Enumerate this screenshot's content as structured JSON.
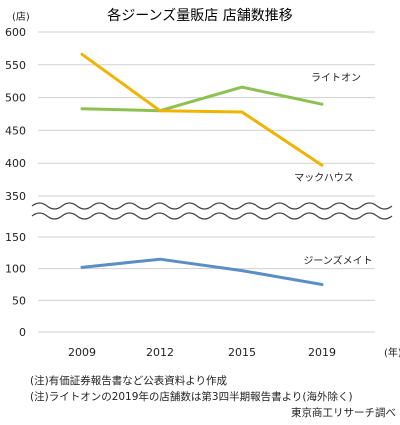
{
  "chart_data": {
    "type": "line",
    "title": "各ジーンズ量販店 店舗数推移",
    "y_unit_label": "(店)",
    "x_unit_label": "(年)",
    "categories": [
      "2009",
      "2012",
      "2015",
      "2019"
    ],
    "y_upper_range": [
      350,
      600
    ],
    "y_upper_ticks": [
      "350",
      "400",
      "450",
      "500",
      "550",
      "600"
    ],
    "y_lower_range": [
      0,
      150
    ],
    "y_lower_ticks": [
      "0",
      "50",
      "100",
      "150"
    ],
    "y_axis_break": [
      150,
      350
    ],
    "grid": true,
    "legend": "none (series labeled inline)",
    "series": [
      {
        "name": "ライトオン",
        "color": "#8cc152",
        "values": [
          483,
          480,
          516,
          490
        ],
        "panel": "upper"
      },
      {
        "name": "マックハウス",
        "color": "#f0b400",
        "values": [
          566,
          480,
          478,
          397
        ],
        "panel": "upper"
      },
      {
        "name": "ジーンズメイト",
        "color": "#5b8ec4",
        "values": [
          102,
          115,
          97,
          75
        ],
        "panel": "lower"
      }
    ]
  },
  "notes": [
    "(注)有価証券報告書など公表資料より作成",
    "(注)ライトオンの2019年の店舗数は第3四半期報告書より(海外除く)"
  ],
  "credit": "東京商工リサーチ調べ"
}
